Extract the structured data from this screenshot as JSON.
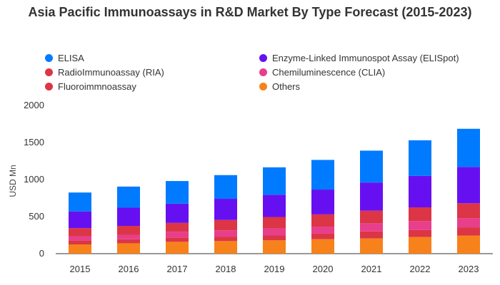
{
  "chart_data": {
    "type": "bar",
    "stacked": true,
    "title": "Asia Pacific Immunoassays in R&D Market By Type Forecast (2015-2023)",
    "xlabel": "",
    "ylabel": "USD Mn",
    "ylim": [
      0,
      2000
    ],
    "yticks": [
      0,
      500,
      1000,
      1500,
      2000
    ],
    "grid": false,
    "legend_placement": "top",
    "categories": [
      "2015",
      "2016",
      "2017",
      "2018",
      "2019",
      "2020",
      "2021",
      "2022",
      "2023"
    ],
    "series": [
      {
        "name": "Others",
        "color": "#f7821b",
        "values": [
          125,
          140,
          160,
          170,
          180,
          195,
          205,
          225,
          245
        ]
      },
      {
        "name": "Fluoroimmnoassay",
        "color": "#dc3545",
        "values": [
          55,
          55,
          55,
          60,
          65,
          75,
          95,
          95,
          110
        ]
      },
      {
        "name": "Chemiluminescence (CLIA)",
        "color": "#e83e8c",
        "values": [
          55,
          60,
          80,
          85,
          95,
          95,
          110,
          120,
          125
        ]
      },
      {
        "name": "RadioImmunoassay (RIA)",
        "color": "#dc3545",
        "values": [
          110,
          120,
          120,
          140,
          155,
          165,
          170,
          185,
          200
        ]
      },
      {
        "name": "Enzyme-Linked Immunospot Assay (ELISpot)",
        "color": "#6610f2",
        "values": [
          225,
          245,
          260,
          285,
          300,
          335,
          380,
          425,
          490
        ]
      },
      {
        "name": "ELISA",
        "color": "#007bff",
        "values": [
          255,
          285,
          305,
          320,
          370,
          400,
          430,
          480,
          515
        ]
      }
    ]
  },
  "legend": [
    {
      "label": "ELISA",
      "color": "#007bff"
    },
    {
      "label": "Enzyme-Linked Immunospot Assay (ELISpot)",
      "color": "#6610f2"
    },
    {
      "label": "RadioImmunoassay (RIA)",
      "color": "#dc3545"
    },
    {
      "label": "Chemiluminescence (CLIA)",
      "color": "#e83e8c"
    },
    {
      "label": "Fluoroimmnoassay",
      "color": "#dc3545"
    },
    {
      "label": "Others",
      "color": "#f7821b"
    }
  ]
}
